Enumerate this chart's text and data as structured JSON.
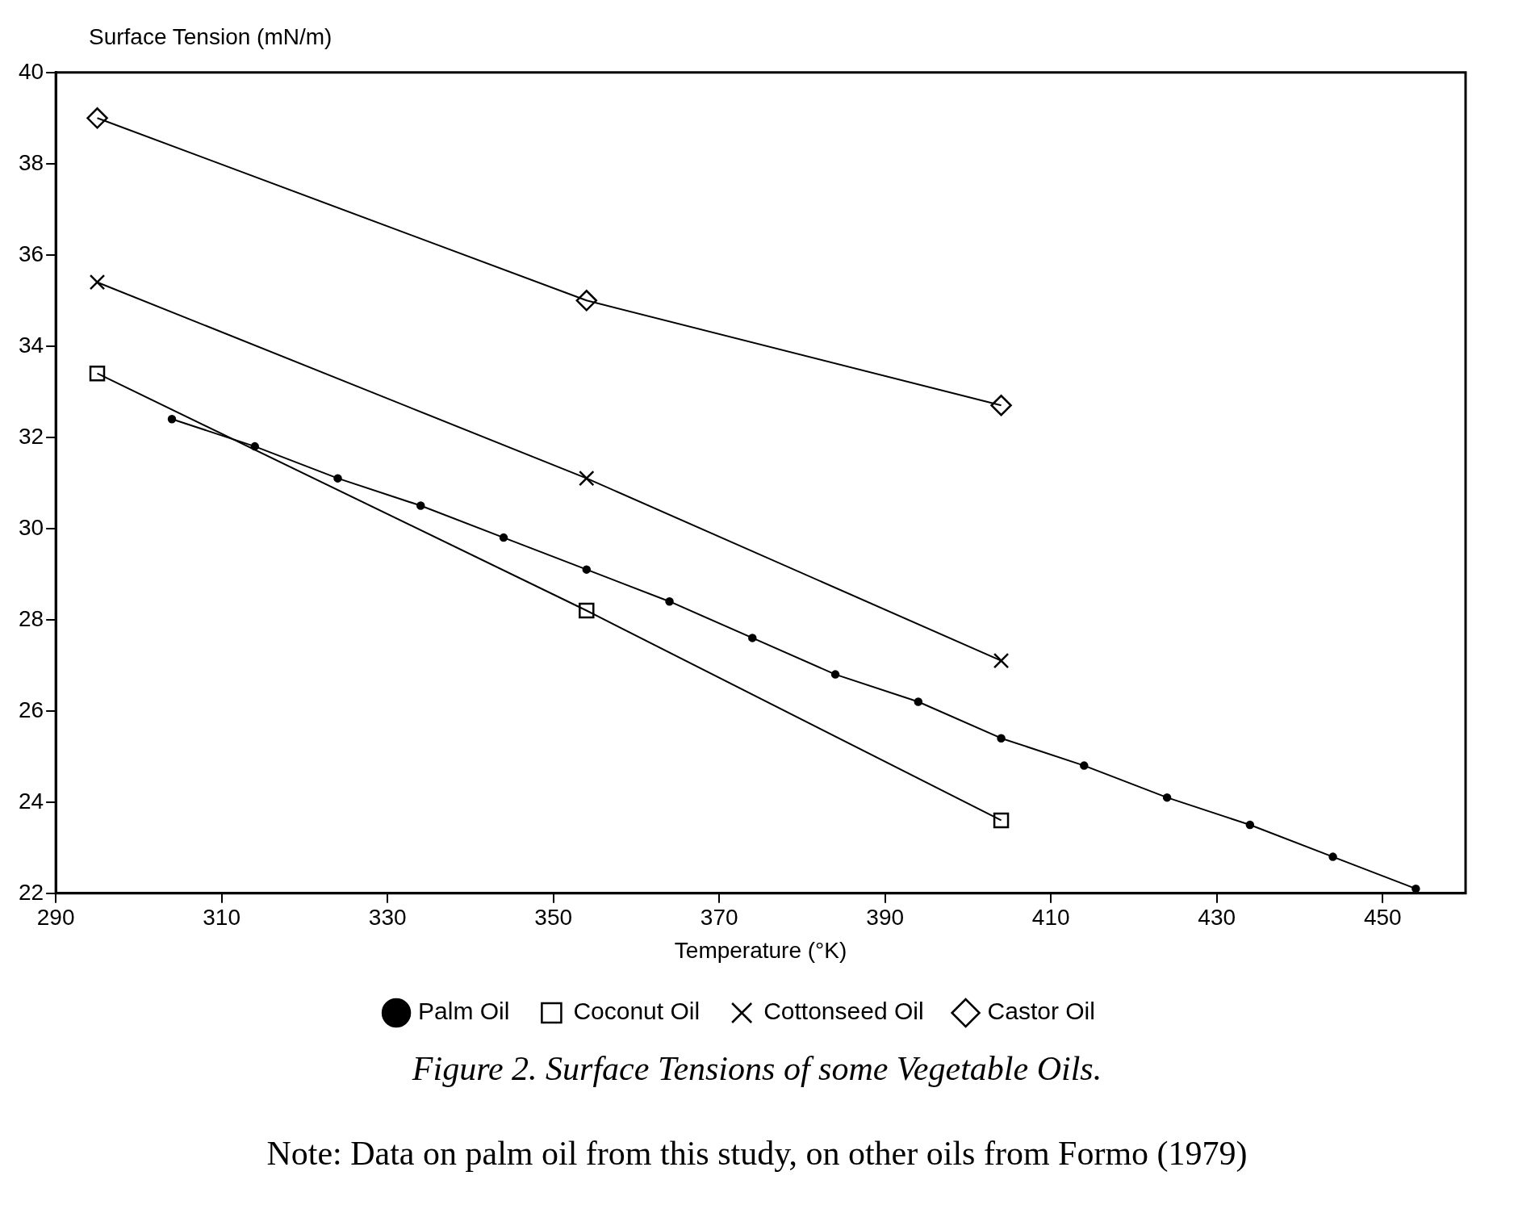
{
  "chart_data": {
    "type": "line",
    "title": "Figure 2. Surface Tensions of some Vegetable Oils.",
    "xlabel": "Temperature (°K)",
    "ylabel": "Surface Tension (mN/m)",
    "annotations": [
      "Note: Data on palm oil from this study, on other oils from Formo (1979)"
    ],
    "xlim": [
      290,
      460
    ],
    "xticks": [
      290,
      310,
      330,
      350,
      370,
      390,
      410,
      430,
      450
    ],
    "ylim": [
      22,
      40
    ],
    "yticks": [
      22,
      24,
      26,
      28,
      30,
      32,
      34,
      36,
      38,
      40
    ],
    "grid": false,
    "legend": "bottom",
    "line_style": "solid",
    "series": [
      {
        "name": "Palm Oil",
        "color": "#000000",
        "marker": "circle",
        "x": [
          304,
          314,
          324,
          334,
          344,
          354,
          364,
          374,
          384,
          394,
          404,
          414,
          424,
          434,
          444,
          454
        ],
        "values": [
          32.4,
          31.8,
          31.1,
          30.5,
          29.8,
          29.1,
          28.4,
          27.6,
          26.8,
          26.2,
          25.4,
          24.8,
          24.1,
          23.5,
          22.8,
          22.1
        ]
      },
      {
        "name": "Coconut Oil",
        "color": "#000000",
        "marker": "square",
        "x": [
          295,
          354,
          404
        ],
        "values": [
          33.4,
          28.2,
          23.6
        ]
      },
      {
        "name": "Cottonseed Oil",
        "color": "#000000",
        "marker": "cross",
        "x": [
          295,
          354,
          404
        ],
        "values": [
          35.4,
          31.1,
          27.1
        ]
      },
      {
        "name": "Castor Oil",
        "color": "#000000",
        "marker": "diamond",
        "x": [
          295,
          354,
          404
        ],
        "values": [
          39.0,
          35.0,
          32.7
        ]
      }
    ]
  }
}
